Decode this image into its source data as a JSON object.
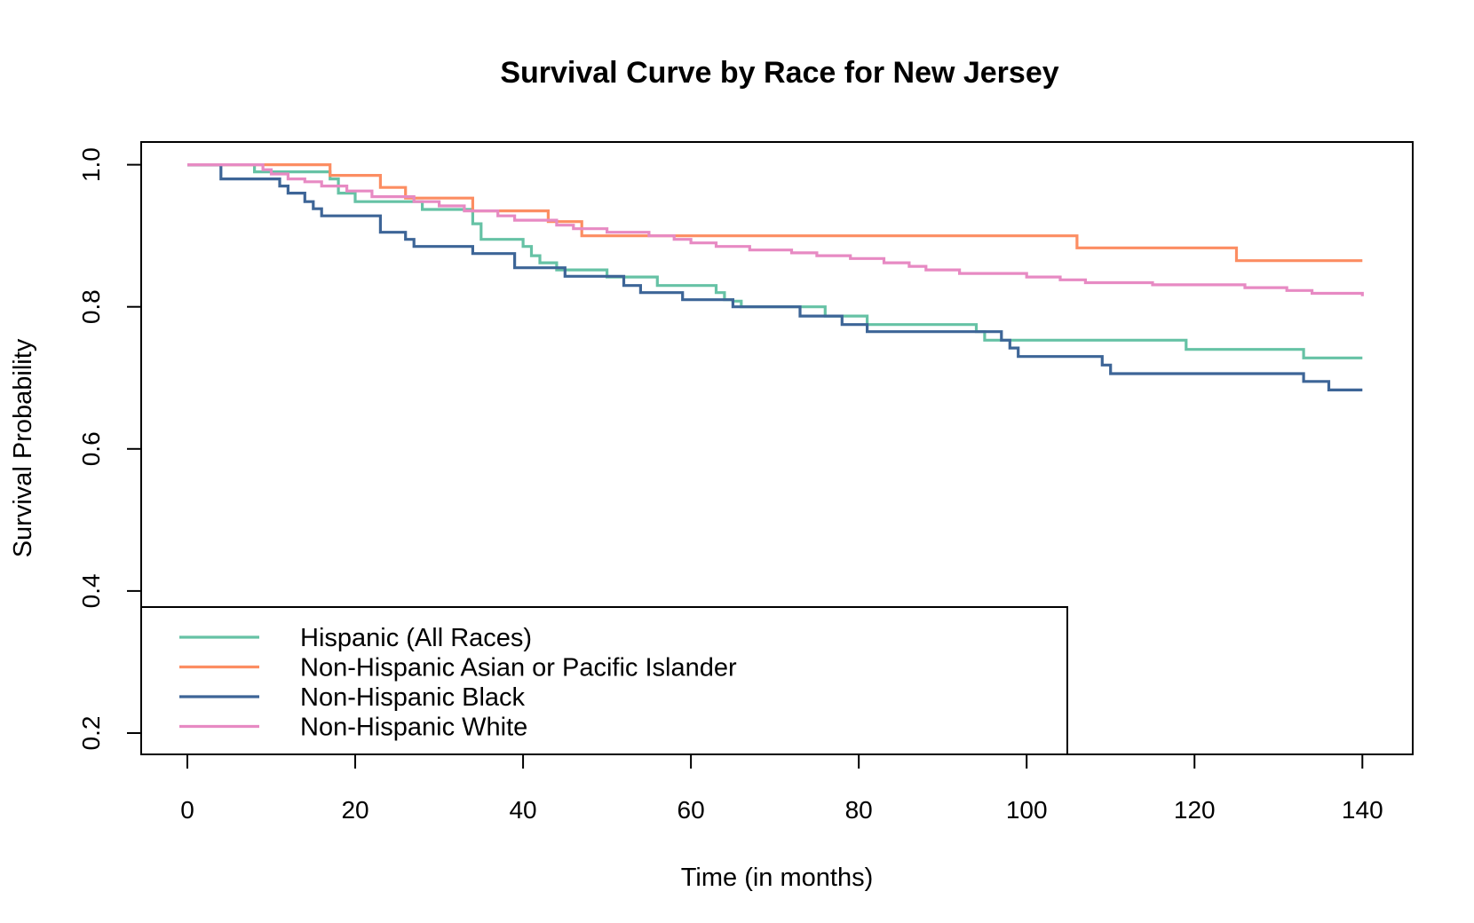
{
  "chart_data": {
    "type": "line",
    "step": true,
    "title": "Survival Curve by Race for New Jersey",
    "xlabel": "Time (in months)",
    "ylabel": "Survival Probability",
    "xlim": [
      -5.5,
      146
    ],
    "ylim": [
      0.17,
      1.032
    ],
    "xticks": [
      0,
      20,
      40,
      60,
      80,
      100,
      120,
      140
    ],
    "yticks": [
      0.2,
      0.4,
      0.6,
      0.8,
      1.0
    ],
    "ytick_labels": [
      "0.2",
      "0.4",
      "0.6",
      "0.8",
      "1.0"
    ],
    "grid": false,
    "legend_position": "bottom-left",
    "series": [
      {
        "name": "Hispanic (All Races)",
        "color": "#66c2a5",
        "points": [
          [
            0,
            1.0
          ],
          [
            8,
            0.99
          ],
          [
            17,
            0.98
          ],
          [
            18,
            0.96
          ],
          [
            20,
            0.948
          ],
          [
            28,
            0.937
          ],
          [
            34,
            0.917
          ],
          [
            35,
            0.895
          ],
          [
            40,
            0.885
          ],
          [
            41,
            0.872
          ],
          [
            42,
            0.862
          ],
          [
            44,
            0.852
          ],
          [
            50,
            0.842
          ],
          [
            56,
            0.83
          ],
          [
            63,
            0.82
          ],
          [
            64,
            0.81
          ],
          [
            65,
            0.808
          ],
          [
            66,
            0.8
          ],
          [
            76,
            0.787
          ],
          [
            81,
            0.775
          ],
          [
            94,
            0.765
          ],
          [
            95,
            0.753
          ],
          [
            119,
            0.74
          ],
          [
            133,
            0.728
          ],
          [
            140,
            0.728
          ]
        ]
      },
      {
        "name": "Non-Hispanic Asian or Pacific Islander",
        "color": "#fc8d62",
        "points": [
          [
            0,
            1.0
          ],
          [
            17,
            0.985
          ],
          [
            23,
            0.968
          ],
          [
            26,
            0.953
          ],
          [
            34,
            0.935
          ],
          [
            43,
            0.92
          ],
          [
            47,
            0.9
          ],
          [
            106,
            0.883
          ],
          [
            125,
            0.865
          ],
          [
            140,
            0.865
          ]
        ]
      },
      {
        "name": "Non-Hispanic Black",
        "color": "#3d6597",
        "points": [
          [
            0,
            1.0
          ],
          [
            4,
            0.98
          ],
          [
            11,
            0.97
          ],
          [
            12,
            0.96
          ],
          [
            14,
            0.948
          ],
          [
            15,
            0.938
          ],
          [
            16,
            0.928
          ],
          [
            23,
            0.905
          ],
          [
            26,
            0.895
          ],
          [
            27,
            0.885
          ],
          [
            34,
            0.875
          ],
          [
            39,
            0.855
          ],
          [
            45,
            0.843
          ],
          [
            52,
            0.83
          ],
          [
            54,
            0.82
          ],
          [
            59,
            0.81
          ],
          [
            65,
            0.8
          ],
          [
            73,
            0.787
          ],
          [
            78,
            0.775
          ],
          [
            81,
            0.765
          ],
          [
            97,
            0.753
          ],
          [
            98,
            0.742
          ],
          [
            99,
            0.73
          ],
          [
            109,
            0.718
          ],
          [
            110,
            0.706
          ],
          [
            133,
            0.695
          ],
          [
            136,
            0.683
          ],
          [
            140,
            0.683
          ]
        ]
      },
      {
        "name": "Non-Hispanic White",
        "color": "#e78ac3",
        "points": [
          [
            0,
            1.0
          ],
          [
            9,
            0.993
          ],
          [
            10,
            0.987
          ],
          [
            12,
            0.98
          ],
          [
            14,
            0.976
          ],
          [
            16,
            0.97
          ],
          [
            19,
            0.963
          ],
          [
            22,
            0.955
          ],
          [
            27,
            0.948
          ],
          [
            30,
            0.942
          ],
          [
            33,
            0.935
          ],
          [
            37,
            0.928
          ],
          [
            39,
            0.922
          ],
          [
            44,
            0.915
          ],
          [
            46,
            0.91
          ],
          [
            50,
            0.905
          ],
          [
            55,
            0.9
          ],
          [
            58,
            0.895
          ],
          [
            60,
            0.89
          ],
          [
            63,
            0.885
          ],
          [
            67,
            0.88
          ],
          [
            72,
            0.876
          ],
          [
            75,
            0.872
          ],
          [
            79,
            0.868
          ],
          [
            83,
            0.862
          ],
          [
            86,
            0.857
          ],
          [
            88,
            0.852
          ],
          [
            92,
            0.847
          ],
          [
            100,
            0.842
          ],
          [
            104,
            0.838
          ],
          [
            107,
            0.834
          ],
          [
            115,
            0.831
          ],
          [
            126,
            0.827
          ],
          [
            131,
            0.823
          ],
          [
            134,
            0.819
          ],
          [
            140,
            0.815
          ]
        ]
      }
    ]
  }
}
